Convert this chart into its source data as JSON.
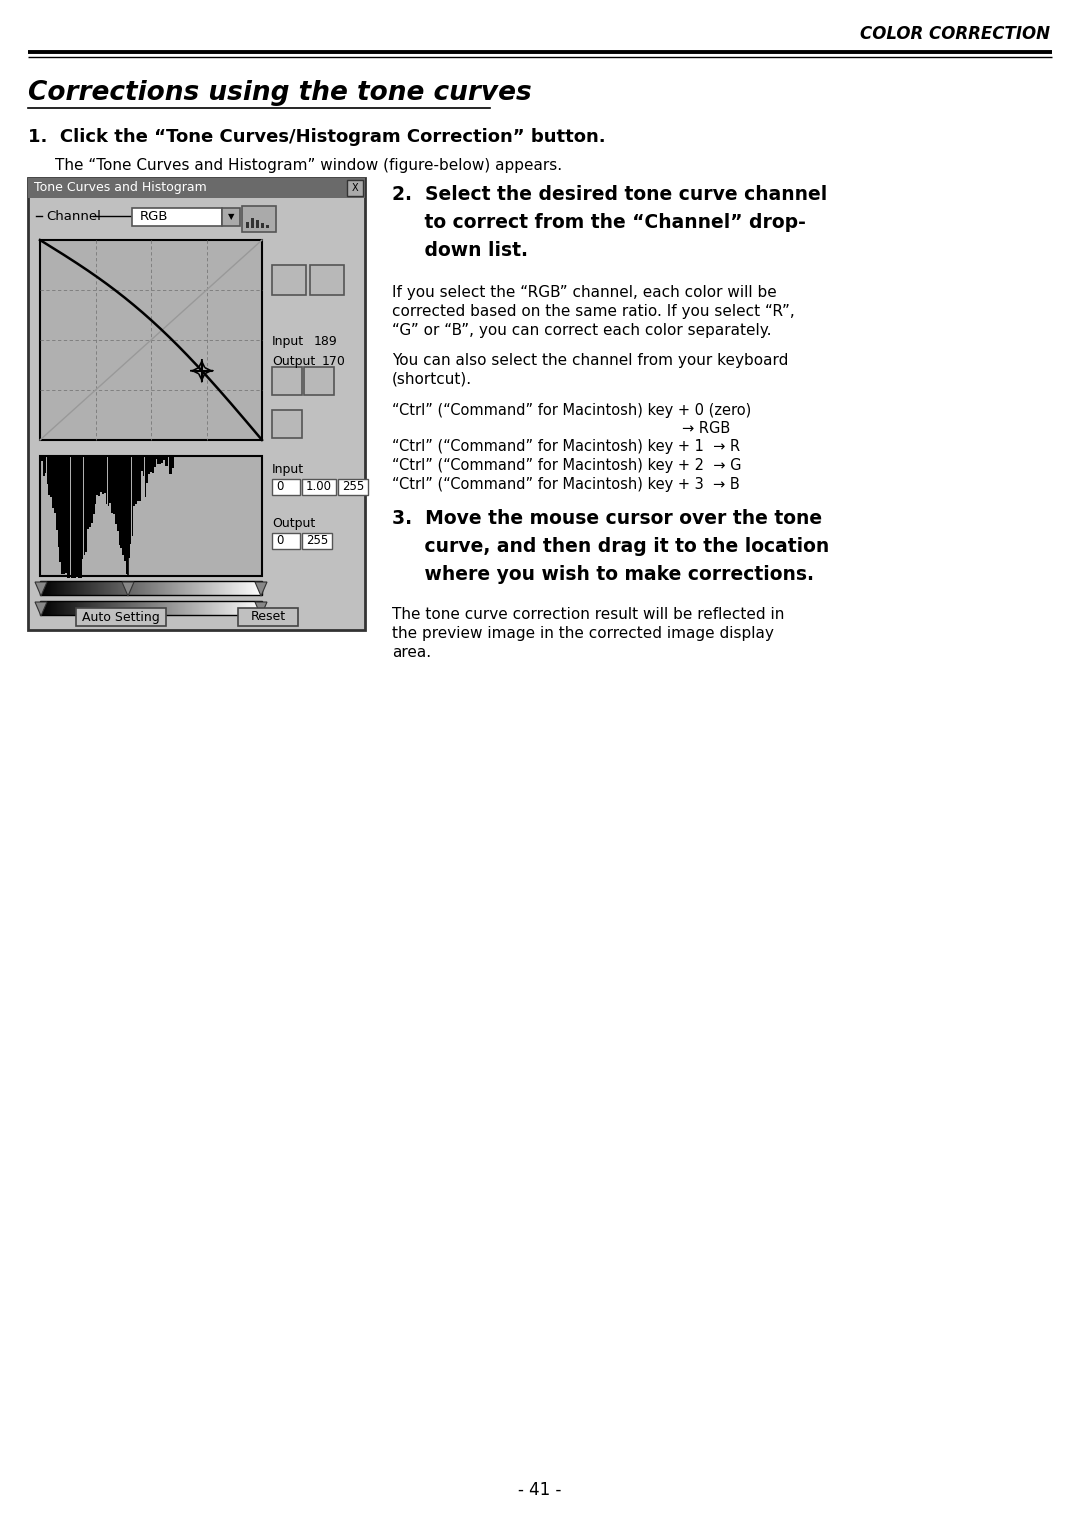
{
  "page_title": "COLOR CORRECTION",
  "section_title": "Corrections using the tone curves",
  "step1_heading": "1.  Click the “Tone Curves/Histogram Correction” button.",
  "step1_body": "The “Tone Curves and Histogram” window (figure-below) appears.",
  "step2_line1": "2.  Select the desired tone curve channel",
  "step2_line2": "     to correct from the “Channel” drop-",
  "step2_line3": "     down list.",
  "step2_para1_lines": [
    "If you select the “RGB” channel, each color will be",
    "corrected based on the same ratio. If you select “R”,",
    "“G” or “B”, you can correct each color separately."
  ],
  "step2_para2_lines": [
    "You can also select the channel from your keyboard",
    "(shortcut)."
  ],
  "ctrl_line0": "“Ctrl” (“Command” for Macintosh) key + 0 (zero)",
  "ctrl_rgb": "                                                        → RGB",
  "ctrl_line1": "“Ctrl” (“Command” for Macintosh) key + 1  → R",
  "ctrl_line2": "“Ctrl” (“Command” for Macintosh) key + 2  → G",
  "ctrl_line3": "“Ctrl” (“Command” for Macintosh) key + 3  → B",
  "step3_line1": "3.  Move the mouse cursor over the tone",
  "step3_line2": "     curve, and then drag it to the location",
  "step3_line3": "     where you wish to make corrections.",
  "step3_para_lines": [
    "The tone curve correction result will be reflected in",
    "the preview image in the corrected image display",
    "area."
  ],
  "page_number": "- 41 -",
  "dialog_title": "Tone Curves and Histogram",
  "channel_label": "Channel",
  "channel_value": "RGB",
  "input_val": "189",
  "output_val": "170",
  "bg": "#ffffff",
  "dialog_bg": "#c0c0c0",
  "title_bar_bg": "#6a6a6a",
  "curve_area_bg": "#b0b0b0",
  "hist_area_bg": "#b0b0b0"
}
